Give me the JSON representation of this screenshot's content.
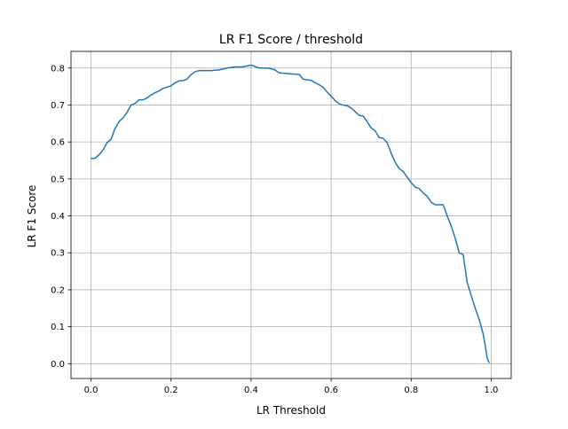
{
  "chart_data": {
    "type": "line",
    "title": "LR F1 Score / threshold",
    "xlabel": "LR Threshold",
    "ylabel": "LR F1 Score",
    "xlim": [
      -0.05,
      1.05
    ],
    "ylim": [
      -0.04,
      0.845
    ],
    "xticks": [
      0.0,
      0.2,
      0.4,
      0.6,
      0.8,
      1.0
    ],
    "xtick_labels": [
      "0.0",
      "0.2",
      "0.4",
      "0.6",
      "0.8",
      "1.0"
    ],
    "yticks": [
      0.0,
      0.1,
      0.2,
      0.3,
      0.4,
      0.5,
      0.6,
      0.7,
      0.8
    ],
    "ytick_labels": [
      "0.0",
      "0.1",
      "0.2",
      "0.3",
      "0.4",
      "0.5",
      "0.6",
      "0.7",
      "0.8"
    ],
    "grid": true,
    "line_color": "#1f77b4",
    "grid_color": "#b0b0b0",
    "series": [
      {
        "x": [
          0.0,
          0.01,
          0.02,
          0.03,
          0.04,
          0.05,
          0.06,
          0.07,
          0.08,
          0.09,
          0.1,
          0.11,
          0.12,
          0.13,
          0.14,
          0.15,
          0.16,
          0.17,
          0.18,
          0.19,
          0.2,
          0.21,
          0.22,
          0.23,
          0.24,
          0.25,
          0.26,
          0.27,
          0.28,
          0.29,
          0.3,
          0.32,
          0.34,
          0.36,
          0.38,
          0.39,
          0.4,
          0.41,
          0.42,
          0.43,
          0.44,
          0.45,
          0.46,
          0.47,
          0.48,
          0.5,
          0.52,
          0.53,
          0.54,
          0.55,
          0.56,
          0.57,
          0.58,
          0.59,
          0.6,
          0.61,
          0.62,
          0.63,
          0.64,
          0.65,
          0.66,
          0.67,
          0.68,
          0.69,
          0.7,
          0.71,
          0.72,
          0.73,
          0.74,
          0.75,
          0.76,
          0.77,
          0.78,
          0.79,
          0.8,
          0.81,
          0.82,
          0.83,
          0.84,
          0.85,
          0.86,
          0.87,
          0.88,
          0.89,
          0.9,
          0.91,
          0.92,
          0.93,
          0.94,
          0.95,
          0.96,
          0.97,
          0.98,
          0.985,
          0.99,
          0.995
        ],
        "y": [
          0.555,
          0.556,
          0.565,
          0.578,
          0.598,
          0.607,
          0.636,
          0.655,
          0.665,
          0.68,
          0.7,
          0.704,
          0.714,
          0.714,
          0.719,
          0.727,
          0.733,
          0.738,
          0.745,
          0.748,
          0.752,
          0.76,
          0.765,
          0.766,
          0.77,
          0.782,
          0.79,
          0.793,
          0.793,
          0.793,
          0.793,
          0.795,
          0.8,
          0.803,
          0.803,
          0.806,
          0.808,
          0.804,
          0.8,
          0.8,
          0.8,
          0.798,
          0.795,
          0.787,
          0.786,
          0.784,
          0.783,
          0.77,
          0.768,
          0.767,
          0.76,
          0.755,
          0.748,
          0.735,
          0.724,
          0.712,
          0.703,
          0.7,
          0.698,
          0.692,
          0.682,
          0.672,
          0.67,
          0.655,
          0.638,
          0.63,
          0.612,
          0.61,
          0.598,
          0.57,
          0.545,
          0.528,
          0.52,
          0.505,
          0.49,
          0.478,
          0.474,
          0.462,
          0.453,
          0.437,
          0.43,
          0.43,
          0.43,
          0.4,
          0.373,
          0.34,
          0.3,
          0.295,
          0.22,
          0.185,
          0.15,
          0.12,
          0.08,
          0.05,
          0.015,
          0.002
        ]
      }
    ]
  }
}
